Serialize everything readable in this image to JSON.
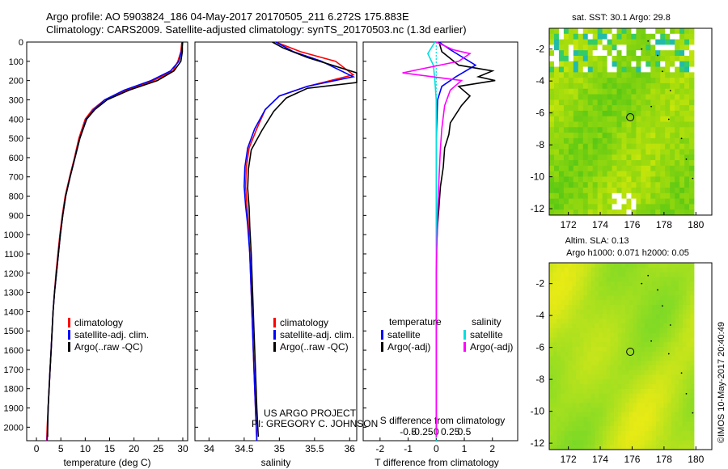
{
  "header": {
    "line1": "Argo profile: AO 5903824_186 04-May-2017 20170505_211 6.272S 175.883E",
    "line2": "Climatology: CARS2009. Satellite-adjusted climatology: synTS_20170503.nc (1.3d earlier)"
  },
  "credits": {
    "project": "US ARGO PROJECT",
    "pi": "PI: GREGORY C. JOHNSON"
  },
  "stamp": "©IMOS 10-May-2017 20:40:49",
  "colors": {
    "climatology": "#ff0000",
    "satellite": "#0000ff",
    "argo": "#000000",
    "cyan": "#00e0e0",
    "magenta": "#ff00ff"
  },
  "chart_data": [
    {
      "type": "line",
      "xlabel": "temperature (deg C)",
      "ylabel": "",
      "xlim": [
        -2,
        31
      ],
      "ylim": [
        2070,
        0
      ],
      "xticks": [
        0,
        5,
        10,
        15,
        20,
        25,
        30
      ],
      "yticks": [
        0,
        100,
        200,
        300,
        400,
        500,
        600,
        700,
        800,
        900,
        1000,
        1100,
        1200,
        1300,
        1400,
        1500,
        1600,
        1700,
        1800,
        1900,
        2000
      ],
      "legend": {
        "position": "lower-center",
        "items": [
          "climatology",
          "satellite-adj. clim.",
          "Argo(..raw -QC)"
        ]
      },
      "series": [
        {
          "name": "climatology",
          "color": "#ff0000",
          "points": [
            [
              29.8,
              0
            ],
            [
              29.6,
              50
            ],
            [
              29.0,
              100
            ],
            [
              28.0,
              150
            ],
            [
              24.0,
              200
            ],
            [
              18.5,
              250
            ],
            [
              14.0,
              300
            ],
            [
              11.5,
              350
            ],
            [
              10.0,
              400
            ],
            [
              8.7,
              500
            ],
            [
              7.8,
              600
            ],
            [
              6.8,
              700
            ],
            [
              5.9,
              800
            ],
            [
              5.3,
              900
            ],
            [
              4.8,
              1000
            ],
            [
              4.4,
              1100
            ],
            [
              4.0,
              1200
            ],
            [
              3.7,
              1300
            ],
            [
              3.4,
              1400
            ],
            [
              3.2,
              1500
            ],
            [
              3.0,
              1600
            ],
            [
              2.8,
              1700
            ],
            [
              2.6,
              1800
            ],
            [
              2.4,
              1900
            ],
            [
              2.2,
              2000
            ],
            [
              2.1,
              2070
            ]
          ]
        },
        {
          "name": "satellite-adj. clim.",
          "color": "#0000ff",
          "points": [
            [
              30.0,
              0
            ],
            [
              29.7,
              50
            ],
            [
              29.2,
              100
            ],
            [
              27.5,
              150
            ],
            [
              23.5,
              200
            ],
            [
              18.0,
              250
            ],
            [
              14.0,
              300
            ],
            [
              11.8,
              350
            ],
            [
              10.2,
              400
            ],
            [
              8.9,
              500
            ],
            [
              7.9,
              600
            ],
            [
              6.9,
              700
            ],
            [
              6.0,
              800
            ],
            [
              5.4,
              900
            ],
            [
              4.9,
              1000
            ],
            [
              4.5,
              1100
            ],
            [
              4.1,
              1200
            ],
            [
              3.7,
              1300
            ],
            [
              3.4,
              1400
            ],
            [
              3.2,
              1500
            ],
            [
              3.0,
              1600
            ],
            [
              2.8,
              1700
            ],
            [
              2.6,
              1800
            ],
            [
              2.4,
              1900
            ],
            [
              2.3,
              2000
            ],
            [
              2.2,
              2070
            ]
          ]
        },
        {
          "name": "Argo(..raw -QC)",
          "color": "#000000",
          "points": [
            [
              29.9,
              0
            ],
            [
              29.9,
              50
            ],
            [
              29.6,
              100
            ],
            [
              28.2,
              150
            ],
            [
              24.8,
              200
            ],
            [
              19.0,
              250
            ],
            [
              14.5,
              300
            ],
            [
              12.0,
              350
            ],
            [
              10.3,
              400
            ],
            [
              8.9,
              500
            ],
            [
              7.9,
              600
            ],
            [
              6.9,
              700
            ],
            [
              6.0,
              800
            ],
            [
              5.4,
              900
            ],
            [
              4.9,
              1000
            ],
            [
              4.5,
              1100
            ],
            [
              4.1,
              1200
            ],
            [
              3.7,
              1300
            ],
            [
              3.4,
              1400
            ],
            [
              3.2,
              1500
            ],
            [
              3.0,
              1600
            ],
            [
              2.8,
              1700
            ],
            [
              2.6,
              1800
            ],
            [
              2.4,
              1900
            ],
            [
              2.3,
              2000
            ],
            [
              2.3,
              2050
            ]
          ]
        }
      ]
    },
    {
      "type": "line",
      "xlabel": "salinity",
      "ylabel": "",
      "xlim": [
        33.8,
        36.1
      ],
      "ylim": [
        2070,
        0
      ],
      "xticks": [
        34,
        34.5,
        35,
        35.5,
        36
      ],
      "legend": {
        "position": "lower-center",
        "items": [
          "climatology",
          "satellite-adj. clim.",
          "Argo(..raw -QC)"
        ]
      },
      "series": [
        {
          "name": "climatology",
          "color": "#ff0000",
          "points": [
            [
              34.95,
              0
            ],
            [
              35.3,
              50
            ],
            [
              35.8,
              100
            ],
            [
              36.05,
              170
            ],
            [
              35.4,
              230
            ],
            [
              35.0,
              280
            ],
            [
              34.8,
              350
            ],
            [
              34.68,
              450
            ],
            [
              34.57,
              550
            ],
            [
              34.53,
              650
            ],
            [
              34.52,
              750
            ],
            [
              34.54,
              850
            ],
            [
              34.56,
              950
            ],
            [
              34.58,
              1100
            ],
            [
              34.6,
              1300
            ],
            [
              34.62,
              1500
            ],
            [
              34.64,
              1700
            ],
            [
              34.66,
              1900
            ],
            [
              34.68,
              2070
            ]
          ]
        },
        {
          "name": "satellite-adj. clim.",
          "color": "#0000ff",
          "points": [
            [
              34.95,
              0
            ],
            [
              35.2,
              50
            ],
            [
              35.6,
              100
            ],
            [
              36.05,
              180
            ],
            [
              35.4,
              230
            ],
            [
              35.0,
              280
            ],
            [
              34.8,
              350
            ],
            [
              34.65,
              450
            ],
            [
              34.55,
              550
            ],
            [
              34.51,
              650
            ],
            [
              34.5,
              750
            ],
            [
              34.52,
              850
            ],
            [
              34.55,
              950
            ],
            [
              34.58,
              1100
            ],
            [
              34.6,
              1300
            ],
            [
              34.62,
              1500
            ],
            [
              34.64,
              1700
            ],
            [
              34.66,
              1900
            ],
            [
              34.68,
              2070
            ]
          ]
        },
        {
          "name": "Argo(..raw -QC)",
          "color": "#000000",
          "points": [
            [
              34.9,
              0
            ],
            [
              35.05,
              30
            ],
            [
              35.4,
              80
            ],
            [
              36.1,
              160
            ],
            [
              36.1,
              210
            ],
            [
              35.4,
              240
            ],
            [
              35.1,
              290
            ],
            [
              34.92,
              360
            ],
            [
              34.75,
              460
            ],
            [
              34.6,
              560
            ],
            [
              34.56,
              660
            ],
            [
              34.55,
              760
            ],
            [
              34.57,
              860
            ],
            [
              34.58,
              960
            ],
            [
              34.6,
              1100
            ],
            [
              34.62,
              1300
            ],
            [
              34.64,
              1500
            ],
            [
              34.66,
              1700
            ],
            [
              34.68,
              1900
            ],
            [
              34.7,
              2050
            ]
          ]
        }
      ]
    },
    {
      "type": "line",
      "xlabel": "T difference from climatology",
      "xlabel_top": "S difference from climatology",
      "xlim": [
        -2.6,
        2.9
      ],
      "ylim": [
        2070,
        0
      ],
      "xticks_T": [
        -2,
        -1,
        0,
        1,
        2
      ],
      "xticks_S": [
        -0.5,
        -0.25,
        0,
        0.25,
        0.5
      ],
      "legend": {
        "position": "lower-center",
        "temperature_title": "temperature",
        "salinity_title": "salinity",
        "items_T": [
          "satellite",
          "Argo(-adj)"
        ],
        "items_S": [
          "satellite",
          "Argo(-adj)"
        ]
      },
      "series": [
        {
          "name": "T satellite",
          "color": "#0000ff",
          "points": [
            [
              0.1,
              0
            ],
            [
              0.5,
              40
            ],
            [
              1.4,
              120
            ],
            [
              0.7,
              180
            ],
            [
              0.2,
              230
            ],
            [
              0.05,
              300
            ],
            [
              0.0,
              500
            ],
            [
              0.0,
              800
            ],
            [
              0.0,
              1200
            ],
            [
              0.0,
              1600
            ],
            [
              0.0,
              2050
            ]
          ]
        },
        {
          "name": "T Argo(-adj)",
          "color": "#000000",
          "points": [
            [
              0.1,
              0
            ],
            [
              0.2,
              50
            ],
            [
              0.8,
              120
            ],
            [
              2.0,
              150
            ],
            [
              1.5,
              180
            ],
            [
              2.1,
              200
            ],
            [
              0.8,
              230
            ],
            [
              1.2,
              280
            ],
            [
              0.9,
              330
            ],
            [
              0.5,
              420
            ],
            [
              0.45,
              480
            ],
            [
              0.3,
              550
            ],
            [
              0.25,
              650
            ],
            [
              0.15,
              750
            ],
            [
              0.1,
              850
            ],
            [
              0.05,
              950
            ],
            [
              0.0,
              1100
            ],
            [
              0.0,
              1400
            ],
            [
              0.0,
              1800
            ],
            [
              0.0,
              2050
            ]
          ]
        },
        {
          "name": "S satellite",
          "color": "#00e0e0",
          "points": [
            [
              -0.05,
              0
            ],
            [
              -0.3,
              60
            ],
            [
              -0.1,
              120
            ],
            [
              -0.05,
              200
            ],
            [
              0.0,
              300
            ],
            [
              0.0,
              600
            ],
            [
              0.0,
              1000
            ],
            [
              0.0,
              1500
            ],
            [
              0.0,
              2050
            ]
          ]
        },
        {
          "name": "S Argo(-adj)",
          "color": "#ff00ff",
          "points": [
            [
              0.0,
              0
            ],
            [
              0.6,
              40
            ],
            [
              1.2,
              60
            ],
            [
              0.8,
              100
            ],
            [
              -1.2,
              160
            ],
            [
              0.9,
              200
            ],
            [
              0.5,
              250
            ],
            [
              0.3,
              330
            ],
            [
              0.2,
              450
            ],
            [
              0.15,
              550
            ],
            [
              0.1,
              700
            ],
            [
              0.05,
              900
            ],
            [
              0.0,
              1200
            ],
            [
              0.0,
              2050
            ]
          ]
        }
      ]
    },
    {
      "type": "heatmap",
      "title": "sat. SST: 30.1  Argo: 29.8",
      "xlim": [
        170.8,
        181.0
      ],
      "ylim": [
        -12.4,
        -0.7
      ],
      "xticks": [
        172,
        174,
        176,
        178,
        180
      ],
      "yticks": [
        -2,
        -4,
        -6,
        -8,
        -10,
        -12
      ],
      "marker": {
        "lon": 175.883,
        "lat": -6.272
      }
    },
    {
      "type": "heatmap",
      "title_line1": "Altim. SLA: 0.13",
      "title_line2": "Argo h1000: 0.071 h2000: 0.05",
      "xlim": [
        170.8,
        181.0
      ],
      "ylim": [
        -12.4,
        -0.7
      ],
      "xticks": [
        172,
        174,
        176,
        178,
        180
      ],
      "yticks": [
        -2,
        -4,
        -6,
        -8,
        -10,
        -12
      ],
      "marker": {
        "lon": 175.883,
        "lat": -6.272
      }
    }
  ]
}
